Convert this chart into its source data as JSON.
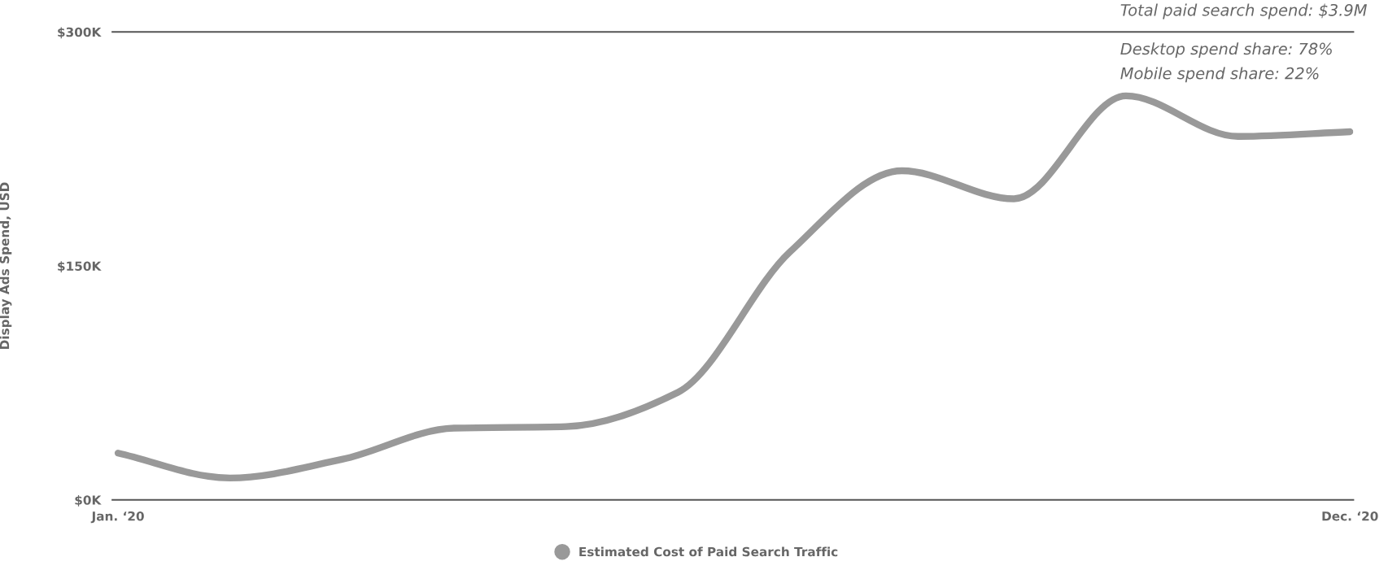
{
  "chart_data": {
    "type": "line",
    "ylabel": "Display Ads Spend, USD",
    "categories": [
      "Jan. ‘20",
      null,
      null,
      null,
      null,
      null,
      null,
      null,
      null,
      null,
      null,
      "Dec. ‘20"
    ],
    "series": [
      {
        "name": "Estimated Cost of Paid Search Traffic",
        "color": "#999999",
        "values": [
          30,
          14,
          26,
          46,
          47,
          69,
          159,
          211,
          193,
          259,
          233,
          236
        ]
      }
    ],
    "ylim": [
      0,
      300
    ],
    "yticks": [
      {
        "value": 0,
        "label": "$0K"
      },
      {
        "value": 150,
        "label": "$150K"
      },
      {
        "value": 300,
        "label": "$300K"
      }
    ],
    "grid": false,
    "legend": "bottom",
    "annotations": [
      "Total paid search spend: $3.9M",
      "Desktop spend share: 78%",
      "Mobile spend share: 22%"
    ]
  }
}
